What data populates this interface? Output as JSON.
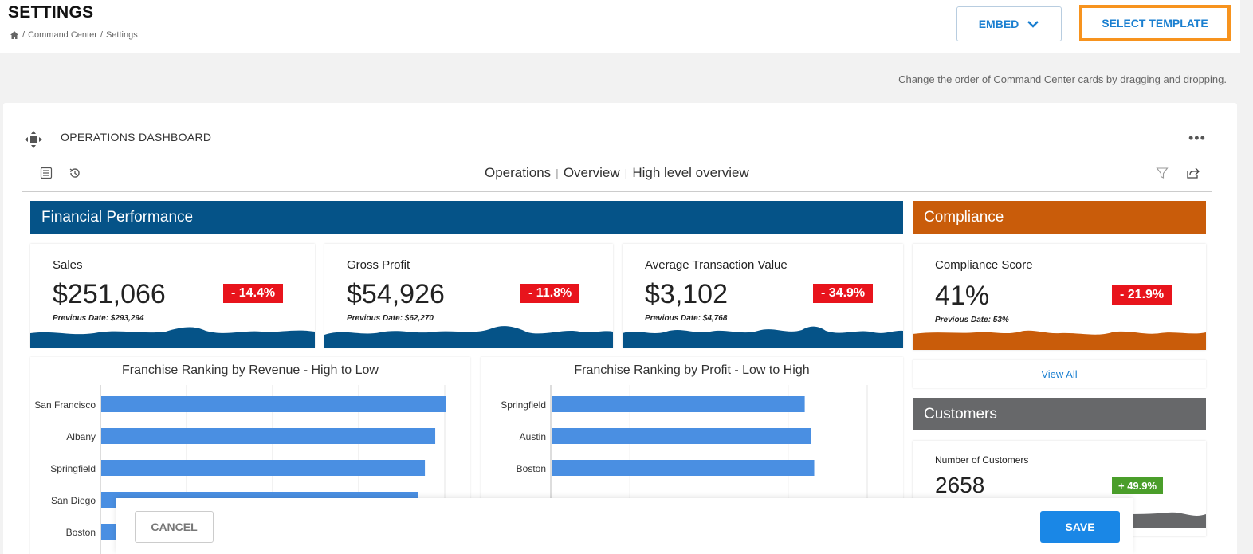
{
  "header": {
    "title": "SETTINGS",
    "breadcrumb": [
      "Command Center",
      "Settings"
    ],
    "embed_label": "EMBED",
    "template_label": "SELECT TEMPLATE"
  },
  "hint": "Change the order of Command Center cards by dragging and dropping.",
  "dashboard": {
    "title": "OPERATIONS DASHBOARD",
    "crumbs": [
      "Operations",
      "Overview",
      "High level overview"
    ],
    "sections": {
      "financial": "Financial Performance",
      "compliance": "Compliance",
      "customers": "Customers"
    },
    "kpis": [
      {
        "label": "Sales",
        "value": "$251,066",
        "change": "- 14.4%",
        "previous": "Previous Date: $293,294"
      },
      {
        "label": "Gross Profit",
        "value": "$54,926",
        "change": "- 11.8%",
        "previous": "Previous Date: $62,270"
      },
      {
        "label": "Average Transaction Value",
        "value": "$3,102",
        "change": "- 34.9%",
        "previous": "Previous Date: $4,768"
      },
      {
        "label": "Compliance Score",
        "value": "41%",
        "change": "- 21.9%",
        "previous": "Previous Date: 53%"
      }
    ],
    "view_all": "View All",
    "customers": {
      "label": "Number of Customers",
      "value": "2658",
      "change": "+ 49.9%"
    },
    "colors": {
      "financial": "#055388",
      "compliance": "#c95c0a",
      "customers": "#67686a",
      "bar": "#4a8fe2",
      "negative": "#e8141c",
      "positive": "#4a9e2a"
    }
  },
  "chart_data": [
    {
      "type": "bar",
      "title": "Franchise Ranking by Revenue - High to Low",
      "categories": [
        "San Francisco",
        "Albany",
        "Springfield",
        "San Diego",
        "Boston"
      ],
      "values": [
        100,
        97,
        94,
        92,
        90
      ]
    },
    {
      "type": "bar",
      "title": "Franchise Ranking by Profit - Low to High",
      "categories": [
        "Springfield",
        "Austin",
        "Boston"
      ],
      "values": [
        80,
        82,
        83
      ]
    }
  ],
  "footer": {
    "cancel_label": "CANCEL",
    "save_label": "SAVE"
  }
}
